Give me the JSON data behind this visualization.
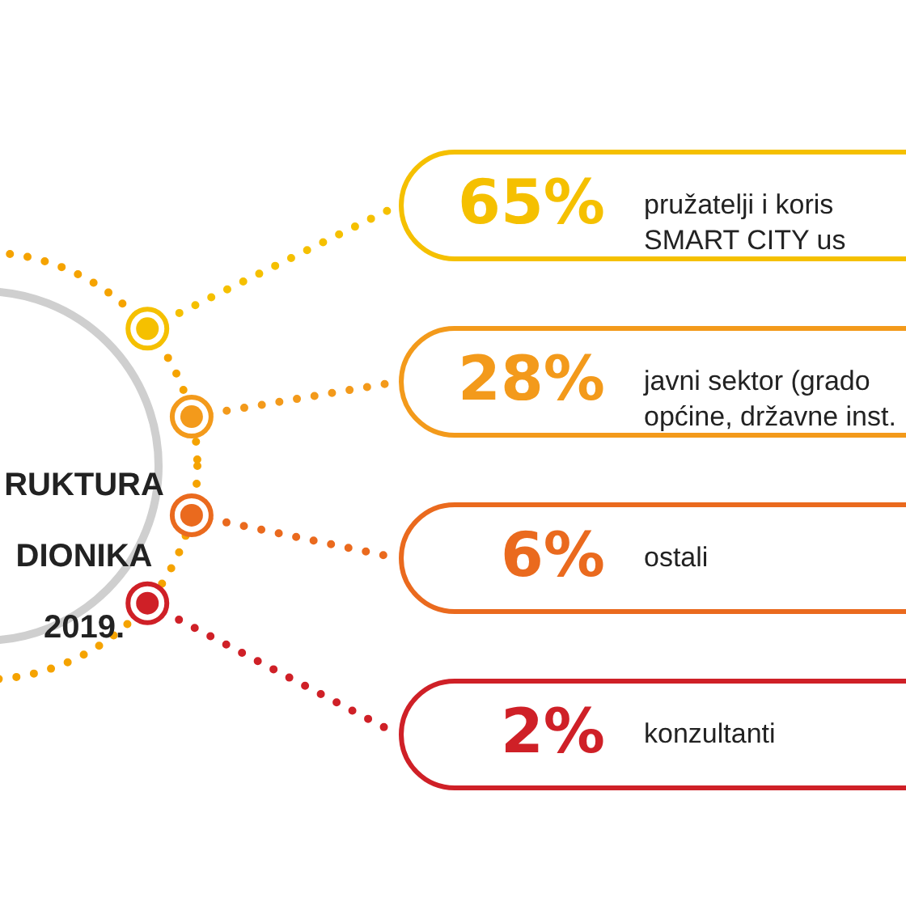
{
  "chart_data": {
    "type": "other",
    "title": "RUKTURA\nDIONIKA\n2019.",
    "categories": [
      "pružatelji i koris\nSMART CITY us",
      "javni sektor (grado\nopćine, državne inst.",
      "ostali",
      "konzultanti"
    ],
    "values": [
      65,
      28,
      6,
      2
    ],
    "value_labels": [
      "65%",
      "28%",
      "6%",
      "2%"
    ],
    "colors": [
      "#f5c000",
      "#f39a1b",
      "#ea6a1e",
      "#cf2027"
    ]
  }
}
